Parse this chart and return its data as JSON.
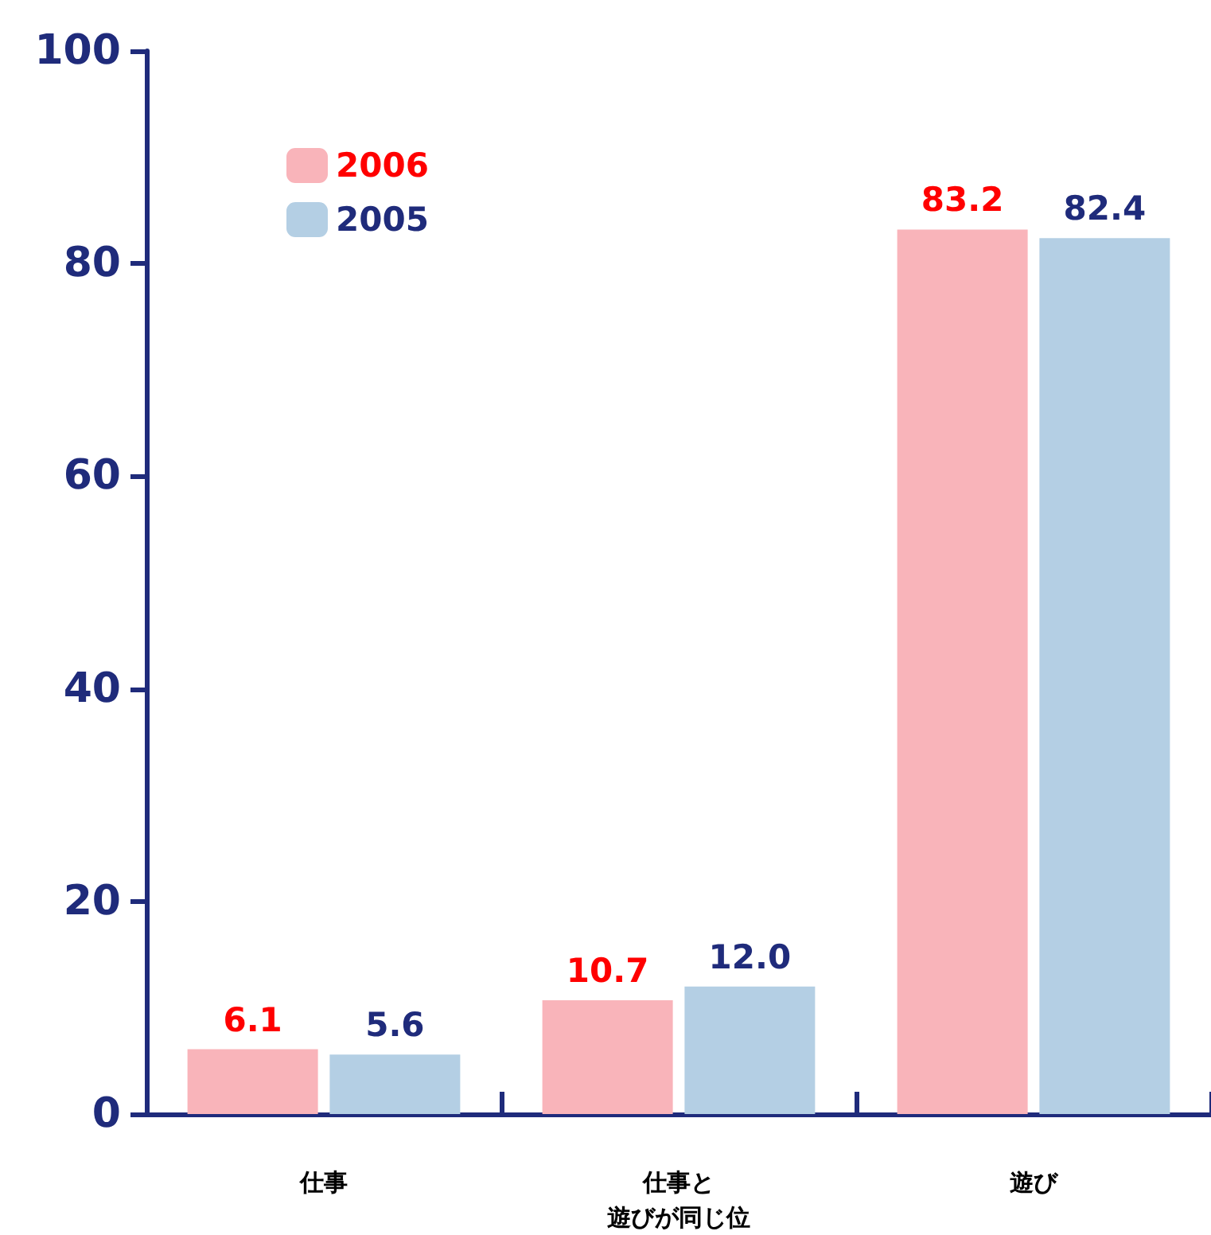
{
  "chart_data": {
    "type": "bar",
    "categories": [
      "仕事",
      "仕事と遊びが同じ位",
      "遊び"
    ],
    "series": [
      {
        "name": "2006",
        "color": "#f9b4ba",
        "values": [
          6.1,
          10.7,
          83.2
        ],
        "value_labels": [
          "6.1",
          "10.7",
          "83.2"
        ]
      },
      {
        "name": "2005",
        "color": "#b4cfe4",
        "values": [
          5.6,
          12.0,
          82.4
        ],
        "value_labels": [
          "5.6",
          "12.0",
          "82.4"
        ]
      }
    ],
    "ylim": [
      0,
      100
    ],
    "yticks": [
      0,
      20,
      40,
      60,
      80,
      100
    ],
    "grid": false,
    "legend": "top left"
  }
}
